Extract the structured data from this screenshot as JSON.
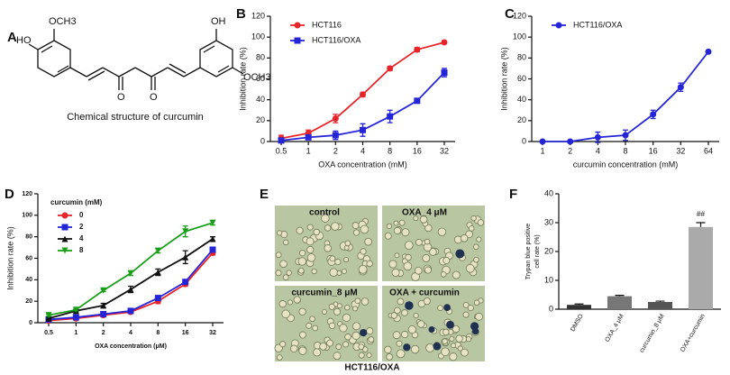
{
  "panel_labels": [
    "A",
    "B",
    "C",
    "D",
    "E",
    "F"
  ],
  "structure": {
    "caption": "Chemical structure of curcumin",
    "atoms": [
      "HO",
      "OCH3",
      "O",
      "O",
      "OH",
      "OCH3"
    ]
  },
  "micrographs": {
    "labels": [
      "control",
      "OXA_4 μM",
      "curcumin_8 μM",
      "OXA + curcumin"
    ],
    "caption": "HCT116/OXA"
  },
  "chart_data": [
    {
      "type": "line",
      "categories": [
        "0.5",
        "1",
        "2",
        "4",
        "8",
        "16",
        "32"
      ],
      "x_label": "OXA concentration (mM)",
      "y_label": "Inhibition rate (%)",
      "ylim": [
        0,
        120
      ],
      "yticks": [
        0,
        20,
        40,
        60,
        80,
        100,
        120
      ],
      "legend": "upper left",
      "series": [
        {
          "name": "HCT116",
          "color": "#e8252a",
          "marker": "circle",
          "values": [
            3,
            8,
            22,
            45,
            70,
            88,
            95
          ],
          "errors": [
            3,
            3,
            4,
            2,
            2,
            2,
            1
          ]
        },
        {
          "name": "HCT116/OXA",
          "color": "#2525d8",
          "marker": "square",
          "values": [
            1,
            4,
            6,
            11,
            24,
            39,
            66
          ],
          "errors": [
            2,
            2,
            4,
            6,
            6,
            2,
            4
          ]
        }
      ]
    },
    {
      "type": "line",
      "categories": [
        "1",
        "2",
        "4",
        "8",
        "16",
        "32",
        "64"
      ],
      "x_label": "curcumin concentration (mM)",
      "y_label": "Inhibition rate (%)",
      "ylim": [
        0,
        120
      ],
      "yticks": [
        0,
        20,
        40,
        60,
        80,
        100,
        120
      ],
      "legend": "upper left",
      "series": [
        {
          "name": "HCT116/OXA",
          "color": "#2525d8",
          "marker": "circle",
          "values": [
            0,
            0,
            4,
            6,
            26,
            52,
            86
          ],
          "errors": [
            1,
            1,
            5,
            5,
            4,
            4,
            1
          ]
        }
      ]
    },
    {
      "type": "line",
      "categories": [
        "0.5",
        "1",
        "2",
        "4",
        "8",
        "16",
        "32"
      ],
      "x_label": "OXA concentration (μM)",
      "y_label": "Inhibition rate (%)",
      "legend_title": "curcumin (mM)",
      "ylim": [
        0,
        120
      ],
      "yticks": [
        0,
        20,
        40,
        60,
        80,
        100,
        120
      ],
      "legend": "upper left",
      "series": [
        {
          "name": "0",
          "color": "#e8252a",
          "marker": "circle",
          "values": [
            2,
            4,
            7,
            10,
            20,
            36,
            65
          ],
          "errors": [
            1,
            1,
            1,
            1,
            2,
            2,
            2
          ]
        },
        {
          "name": "2",
          "color": "#2525d8",
          "marker": "square",
          "values": [
            3,
            5,
            8,
            11,
            23,
            38,
            68
          ],
          "errors": [
            1,
            1,
            1,
            1,
            2,
            2,
            2
          ]
        },
        {
          "name": "4",
          "color": "#111111",
          "marker": "triangle-up",
          "values": [
            4,
            11,
            16,
            31,
            47,
            61,
            78
          ],
          "errors": [
            1,
            1,
            2,
            3,
            3,
            6,
            2
          ]
        },
        {
          "name": "8",
          "color": "#18a018",
          "marker": "triangle-down",
          "values": [
            7,
            12,
            30,
            46,
            67,
            85,
            93
          ],
          "errors": [
            1,
            1,
            1,
            2,
            2,
            5,
            2
          ]
        }
      ]
    },
    {
      "type": "bar",
      "categories": [
        "DMSO",
        "OXA_4 μM",
        "curcumin_8 μM",
        "OXA+curcumin"
      ],
      "y_label": [
        "Trypan blue positive",
        "cell rate (%)"
      ],
      "ylim": [
        0,
        40
      ],
      "yticks": [
        0,
        10,
        20,
        30,
        40
      ],
      "annotation": "##",
      "values": [
        1.5,
        4.5,
        2.5,
        28.5
      ],
      "errors": [
        0.3,
        0.3,
        0.3,
        1.5
      ],
      "colors": [
        "#333333",
        "#777777",
        "#555555",
        "#aaaaaa"
      ]
    }
  ]
}
